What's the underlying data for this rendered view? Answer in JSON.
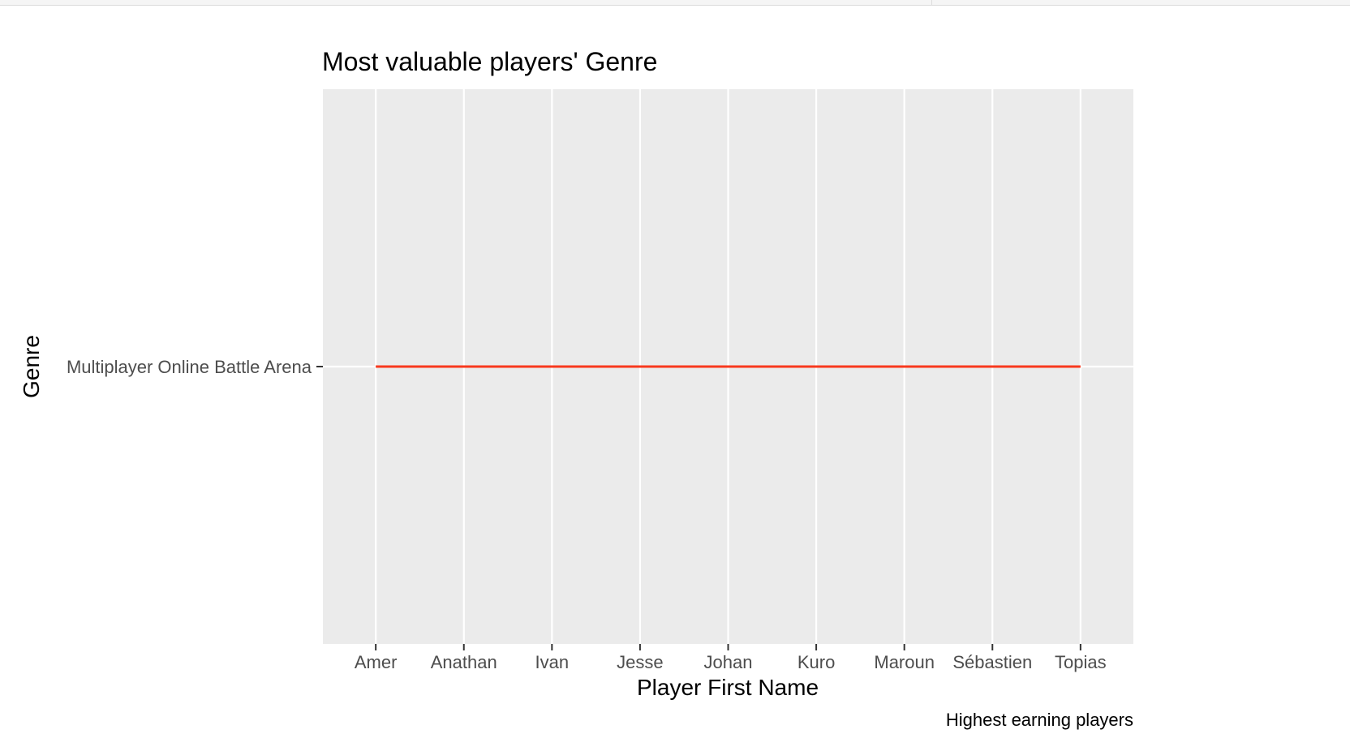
{
  "chart_data": {
    "type": "line",
    "title": "Most valuable players' Genre",
    "xlabel": "Player First Name",
    "ylabel": "Genre",
    "caption": "Highest earning players",
    "categories": [
      "Amer",
      "Anathan",
      "Ivan",
      "Jesse",
      "Johan",
      "Kuro",
      "Maroun",
      "Sébastien",
      "Topias"
    ],
    "y_categories": [
      "Multiplayer Online Battle Arena"
    ],
    "series": [
      {
        "values": [
          "Multiplayer Online Battle Arena",
          "Multiplayer Online Battle Arena",
          "Multiplayer Online Battle Arena",
          "Multiplayer Online Battle Arena",
          "Multiplayer Online Battle Arena",
          "Multiplayer Online Battle Arena",
          "Multiplayer Online Battle Arena",
          "Multiplayer Online Battle Arena",
          "Multiplayer Online Battle Arena"
        ]
      }
    ],
    "grid": true,
    "legend": "none",
    "colors": {
      "panel_background": "#EBEBEB",
      "grid_line": "#FFFFFF",
      "series_line": "#F8391E",
      "tick_text": "#4D4D4D",
      "title_text": "#000000"
    }
  }
}
